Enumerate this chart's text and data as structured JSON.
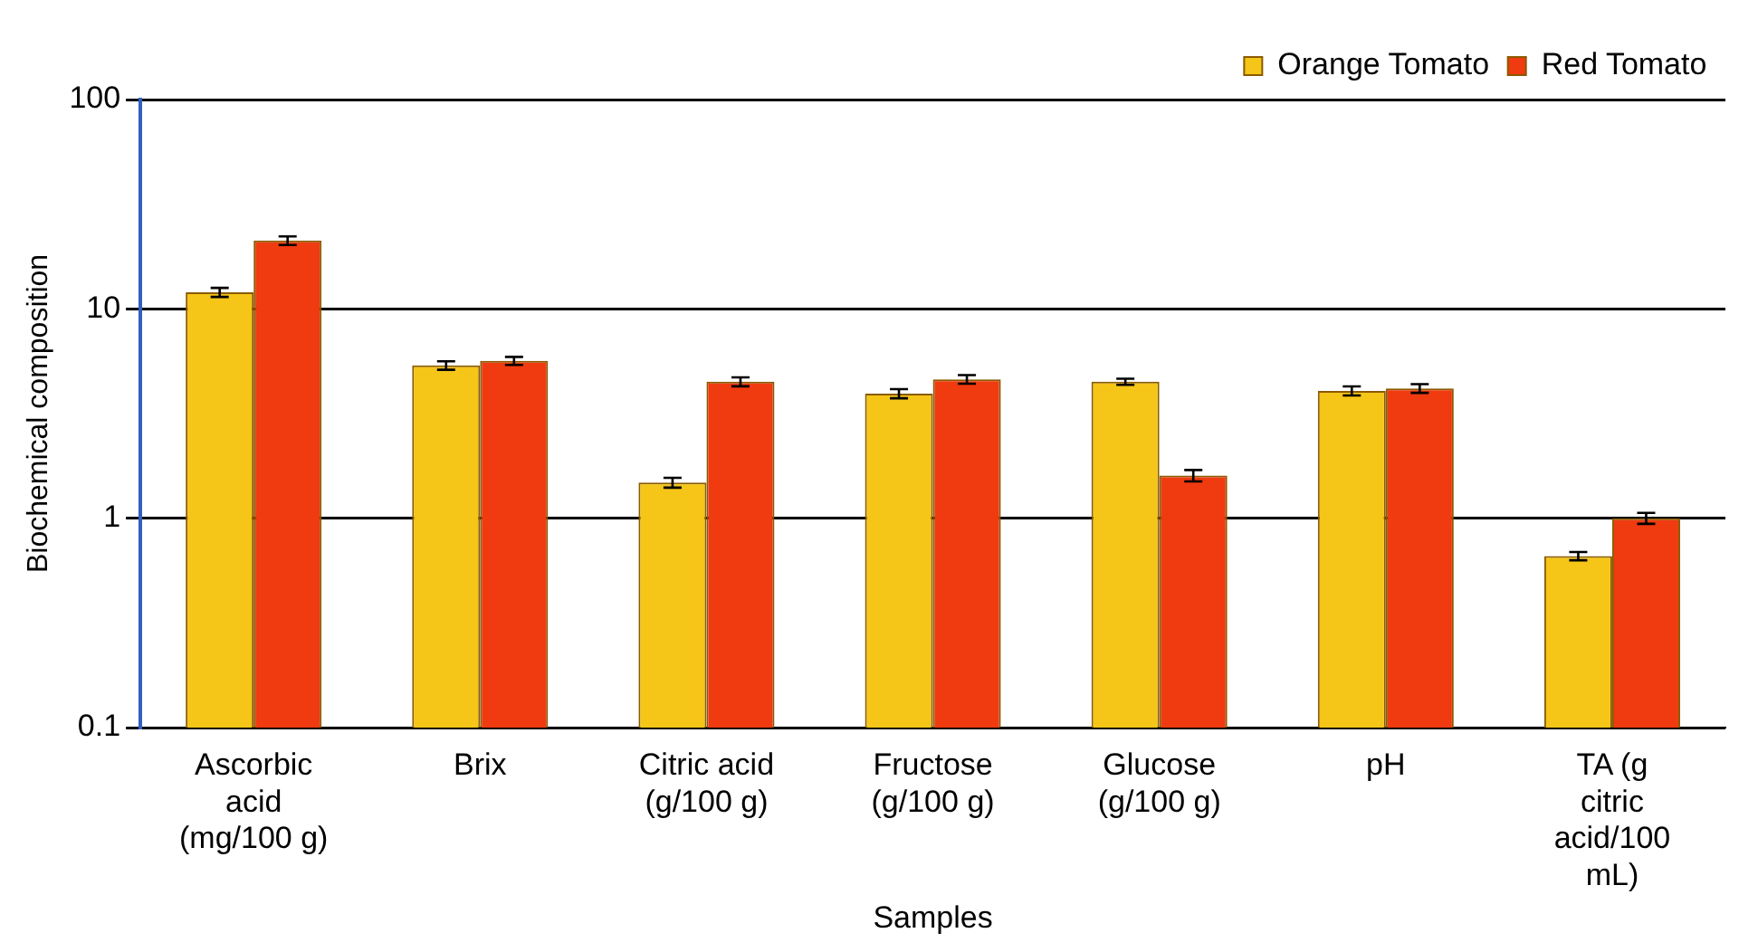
{
  "chart_data": {
    "type": "bar",
    "xlabel": "Samples",
    "ylabel": "Biochemical composition",
    "categories": [
      "Ascorbic acid (mg/100 g)",
      "Brix",
      "Citric acid (g/100 g)",
      "Fructose (g/100 g)",
      "Glucose (g/100 g)",
      "pH",
      "TA (g citric acid/100 mL)"
    ],
    "series": [
      {
        "name": "Orange Tomato",
        "color": "#f5c518",
        "values": [
          12.0,
          5.37,
          1.48,
          3.94,
          4.49,
          4.06,
          0.66
        ],
        "errors": [
          0.6,
          0.25,
          0.08,
          0.2,
          0.15,
          0.2,
          0.03
        ]
      },
      {
        "name": "Red Tomato",
        "color": "#f03a10",
        "values": [
          21.2,
          5.65,
          4.49,
          4.61,
          1.6,
          4.17,
          1.0
        ],
        "errors": [
          1.0,
          0.25,
          0.22,
          0.22,
          0.1,
          0.2,
          0.06
        ]
      }
    ],
    "log": true,
    "ylim": [
      0.1,
      100
    ],
    "yticks": [
      0.1,
      1,
      10,
      100
    ],
    "grid": "y",
    "legend": "top right"
  }
}
